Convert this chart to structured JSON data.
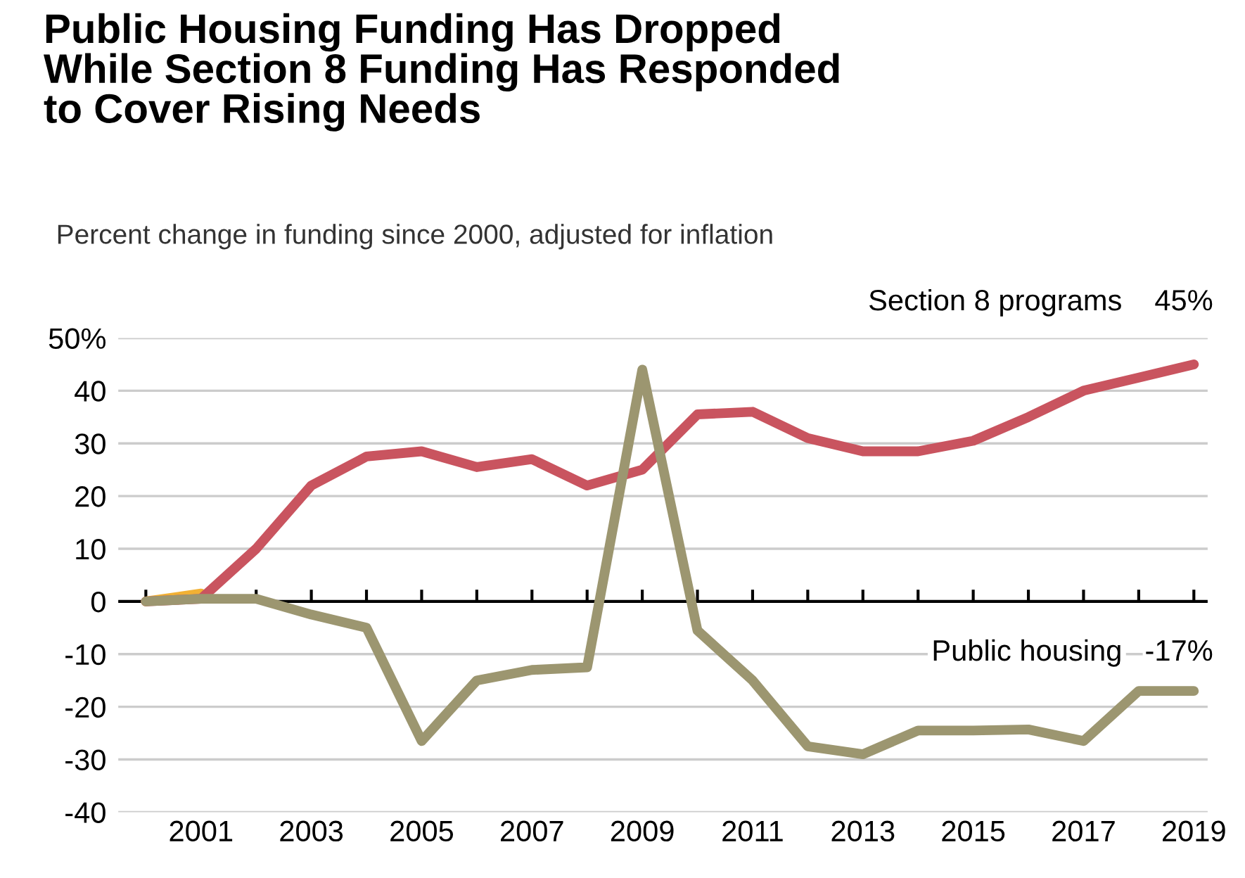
{
  "chart_data": {
    "type": "line",
    "title": "Public Housing Funding Has Dropped\nWhile Section 8 Funding Has Responded\nto Cover Rising Needs",
    "subtitle": "Percent change in funding since 2000, adjusted for inflation",
    "x": [
      2000,
      2001,
      2002,
      2003,
      2004,
      2005,
      2006,
      2007,
      2008,
      2009,
      2010,
      2011,
      2012,
      2013,
      2014,
      2015,
      2016,
      2017,
      2018,
      2019
    ],
    "series": [
      {
        "color": "#f2b134",
        "values": [
          0,
          1.5,
          null,
          null,
          null,
          null,
          null,
          null,
          null,
          null,
          null,
          null,
          null,
          null,
          null,
          null,
          null,
          null,
          null,
          null
        ]
      },
      {
        "name": "Section 8 programs",
        "color": "#c9545f",
        "values": [
          0,
          0.5,
          10,
          22,
          27.5,
          28.5,
          25.5,
          27,
          22,
          25,
          35.5,
          36,
          31,
          28.5,
          28.5,
          30.5,
          35,
          40,
          42.5,
          45
        ],
        "value_labels": [
          null,
          null,
          null,
          null,
          null,
          null,
          null,
          null,
          null,
          null,
          null,
          null,
          null,
          null,
          null,
          null,
          null,
          null,
          null,
          "45%"
        ]
      },
      {
        "name": "Public housing",
        "color": "#9c9670",
        "values": [
          0,
          0.5,
          0.5,
          -2.5,
          -5,
          -26.5,
          -15,
          -13,
          -12.5,
          44,
          -5.5,
          -15,
          -27.5,
          -29,
          -24.5,
          -24.5,
          -24.3,
          -26.5,
          -17,
          -17
        ],
        "value_labels": [
          null,
          null,
          null,
          null,
          null,
          null,
          null,
          null,
          null,
          null,
          null,
          null,
          null,
          null,
          null,
          null,
          null,
          null,
          null,
          "-17%"
        ]
      }
    ],
    "xlim": [
      1999.5,
      2019.25
    ],
    "xticks": [
      {
        "value": 2000,
        "label": null
      },
      2001,
      {
        "value": 2002,
        "label": null
      },
      2003,
      {
        "value": 2004,
        "label": null
      },
      2005,
      {
        "value": 2006,
        "label": null
      },
      2007,
      {
        "value": 2008,
        "label": null
      },
      2009,
      {
        "value": 2010,
        "label": null
      },
      2011,
      {
        "value": 2012,
        "label": null
      },
      2013,
      {
        "value": 2014,
        "label": null
      },
      2015,
      {
        "value": 2016,
        "label": null
      },
      2017,
      {
        "value": 2018,
        "label": null
      },
      2019
    ],
    "ylim": [
      -40,
      50
    ],
    "yticks": [
      -40,
      -30,
      -20,
      -10,
      0,
      10,
      20,
      30,
      40,
      {
        "value": 50,
        "label": "50%"
      }
    ],
    "grid": "y",
    "legend": false,
    "marker": "none",
    "line_style": "solid"
  }
}
